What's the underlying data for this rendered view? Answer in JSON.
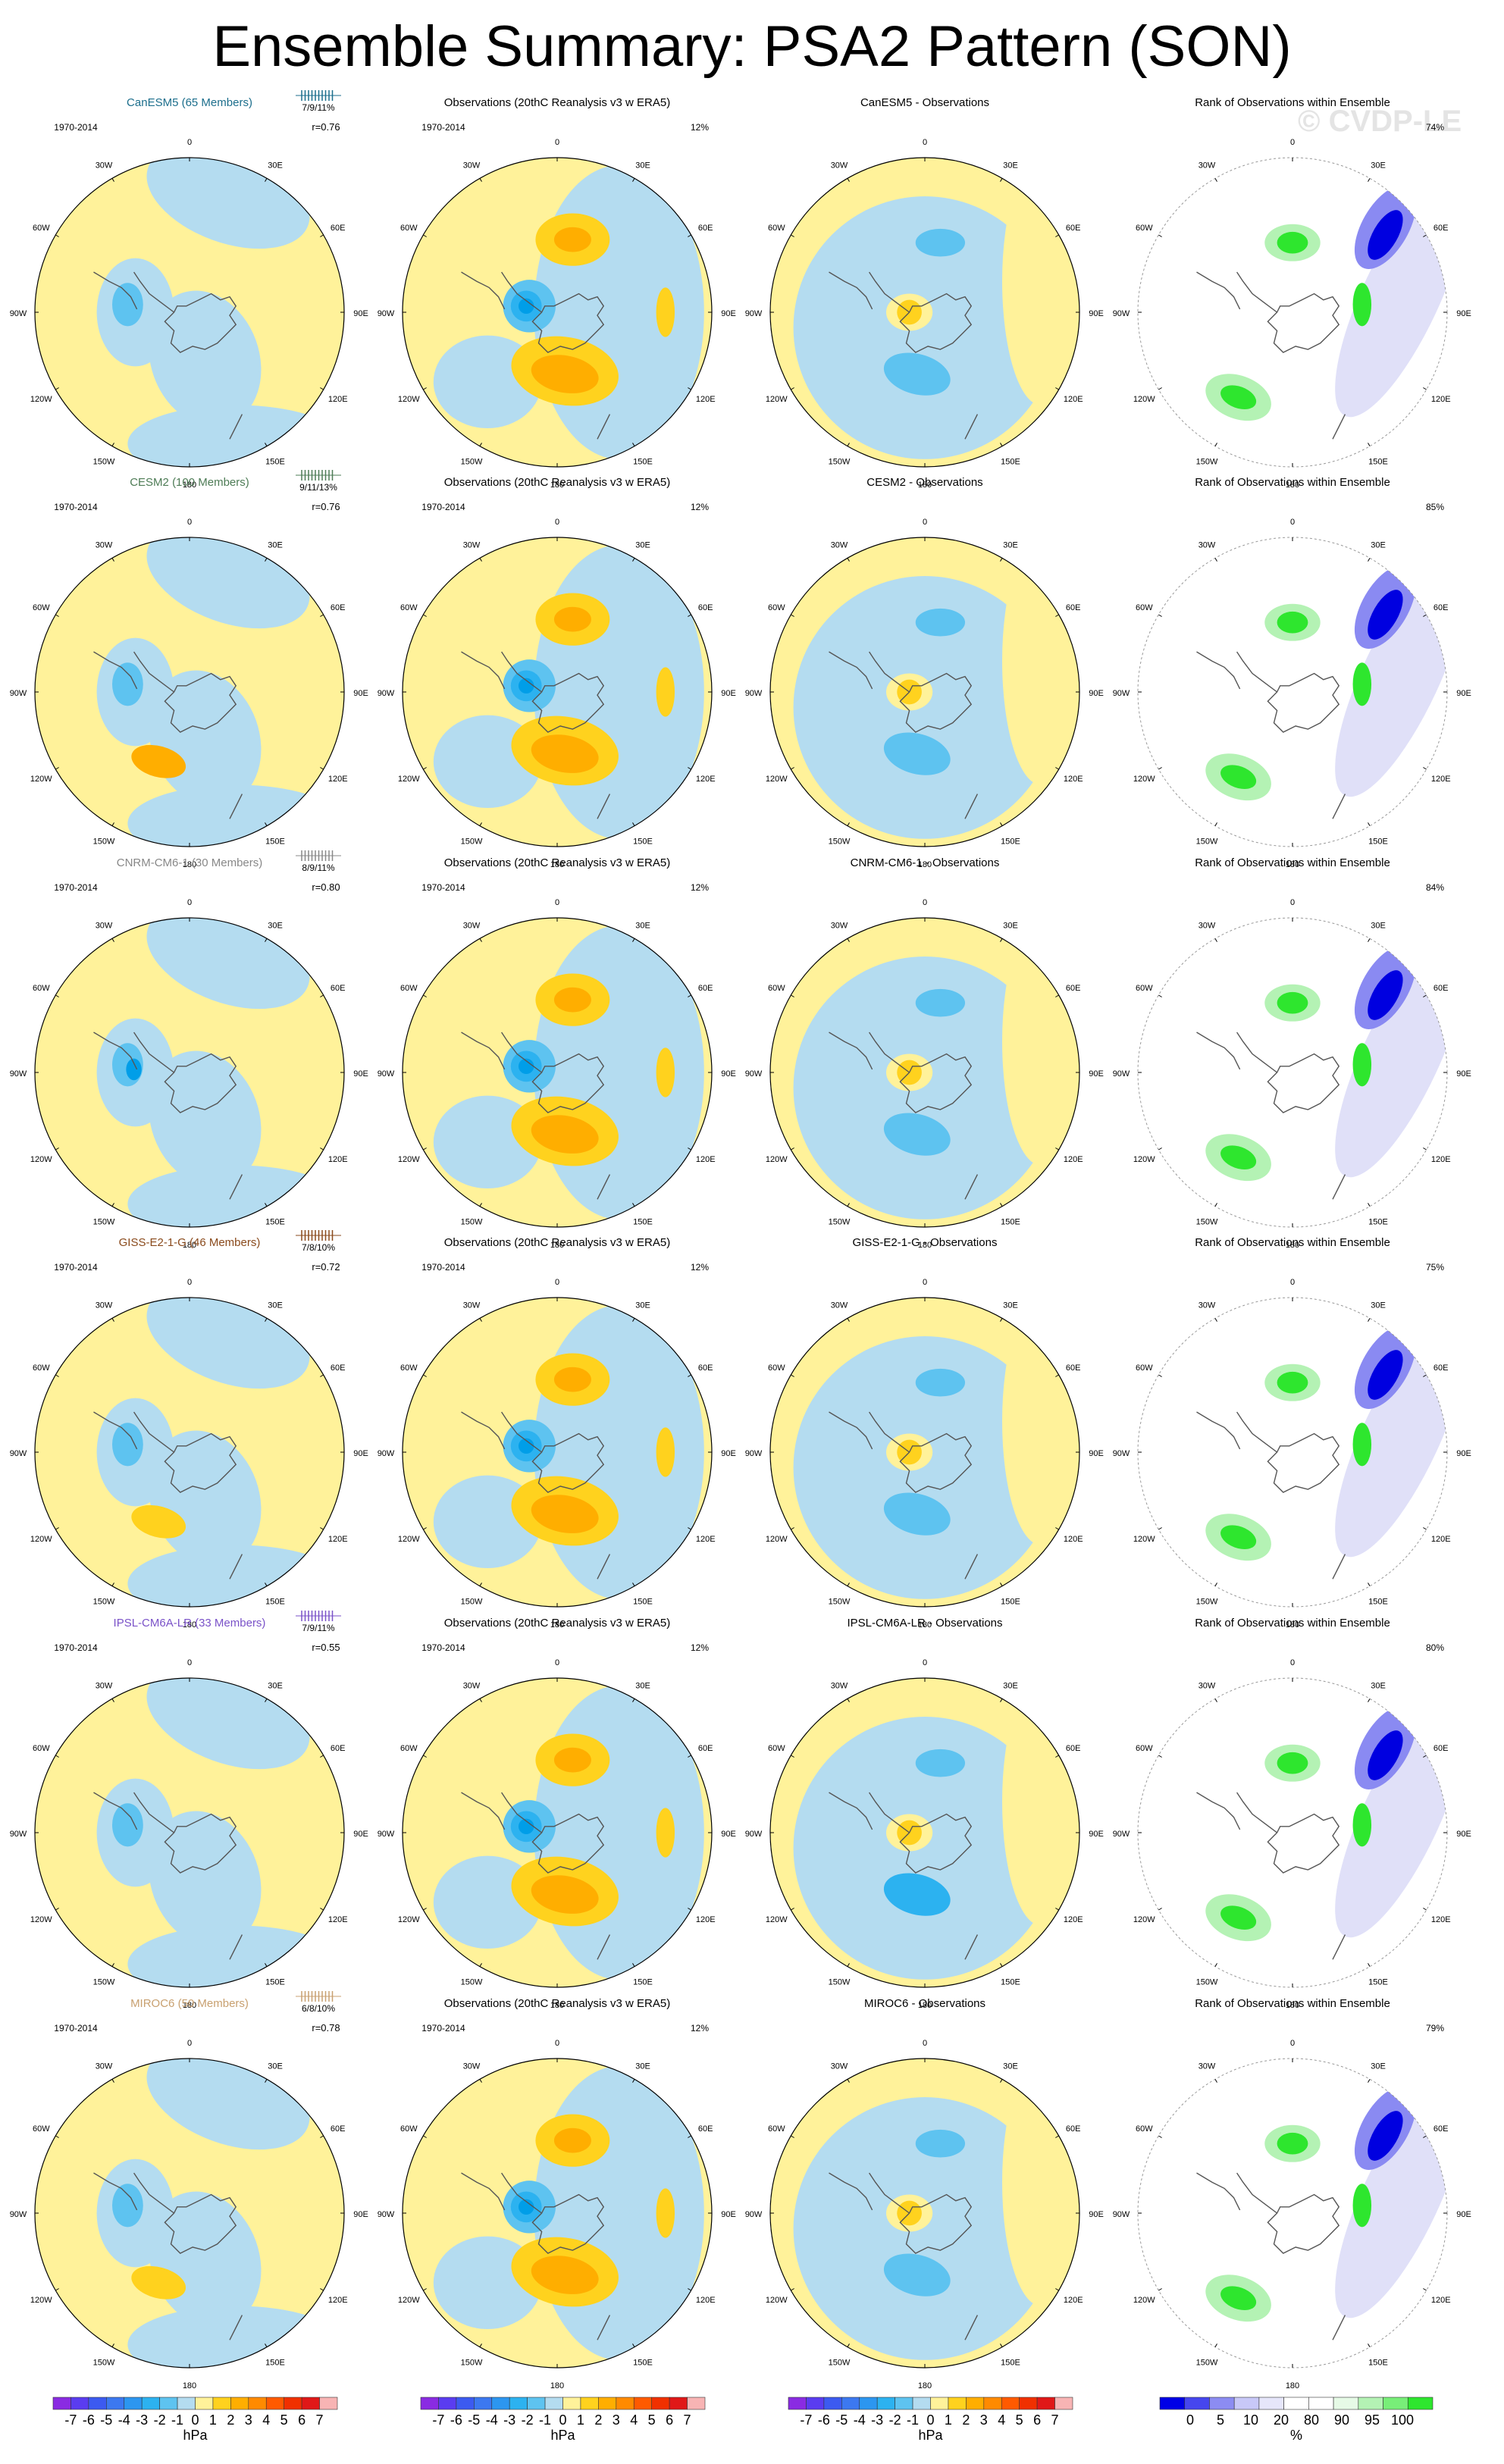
{
  "title": "Ensemble Summary: PSA2 Pattern (SON)",
  "watermark": "© CVDP-LE",
  "period_label": "1970-2014",
  "obs_title": "Observations (20thC Reanalysis v3 w ERA5)",
  "obs_variance": "12%",
  "rank_title": "Rank of Observations within Ensemble",
  "diff_suffix": " - Observations",
  "lon_labels": [
    "0",
    "30E",
    "60E",
    "90E",
    "120E",
    "150E",
    "180",
    "150W",
    "120W",
    "90W",
    "60W",
    "30W"
  ],
  "colors": {
    "neg4": "#009ee8",
    "neg3": "#2cb2f0",
    "neg2": "#5ec3f0",
    "neg1": "#b4dcf0",
    "pos1": "#fff29a",
    "pos2": "#ffd21e",
    "pos3": "#ffae00",
    "pos4": "#ff8a00",
    "rank_low": "#0000e0",
    "rank_mid": "#8a8af2",
    "rank_light": "#e0e0f8",
    "rank_green": "#2ee62e",
    "rank_lgreen": "#b4f2b4",
    "land": "#555555"
  },
  "models": [
    {
      "name": "CanESM5 (65 Members)",
      "short": "CanESM5",
      "color": "#1c6e8c",
      "stats": "7/9/11%",
      "r": "r=0.76",
      "rank_pct": "74%"
    },
    {
      "name": "CESM2 (100 Members)",
      "short": "CESM2",
      "color": "#4e7c56",
      "stats": "9/11/13%",
      "r": "r=0.76",
      "rank_pct": "85%"
    },
    {
      "name": "CNRM-CM6-1 (30 Members)",
      "short": "CNRM-CM6-1",
      "color": "#888888",
      "stats": "8/9/11%",
      "r": "r=0.80",
      "rank_pct": "84%"
    },
    {
      "name": "GISS-E2-1-G (46 Members)",
      "short": "GISS-E2-1-G",
      "color": "#8a4a1c",
      "stats": "7/8/10%",
      "r": "r=0.72",
      "rank_pct": "75%"
    },
    {
      "name": "IPSL-CM6A-LR (33 Members)",
      "short": "IPSL-CM6A-LR",
      "color": "#7a52c8",
      "stats": "7/9/11%",
      "r": "r=0.55",
      "rank_pct": "80%"
    },
    {
      "name": "MIROC6 (50 Members)",
      "short": "MIROC6",
      "color": "#c8a070",
      "stats": "6/8/10%",
      "r": "r=0.78",
      "rank_pct": "79%"
    }
  ],
  "colorbar_hpa": {
    "colors": [
      "#8a2be2",
      "#5a3cf0",
      "#3c5af0",
      "#3c78f0",
      "#2c96f0",
      "#2cb2f0",
      "#5ec3f0",
      "#b4dcf0",
      "#fff29a",
      "#ffd21e",
      "#ffae00",
      "#ff8a00",
      "#ff5a00",
      "#f03000",
      "#e01818",
      "#f8b4b4"
    ],
    "labels": [
      "-7",
      "-6",
      "-5",
      "-4",
      "-3",
      "-2",
      "-1",
      "0",
      "1",
      "2",
      "3",
      "4",
      "5",
      "6",
      "7"
    ],
    "unit": "hPa"
  },
  "colorbar_rank": {
    "colors": [
      "#0000e6",
      "#4646ee",
      "#8c8cf2",
      "#c8c8f8",
      "#e6e6fa",
      "#ffffff",
      "#ffffff",
      "#e6fae6",
      "#b4f2b4",
      "#78ee78",
      "#2ee62e"
    ],
    "labels": [
      "0",
      "5",
      "10",
      "20",
      "80",
      "90",
      "95",
      "100"
    ],
    "unit": "%"
  }
}
